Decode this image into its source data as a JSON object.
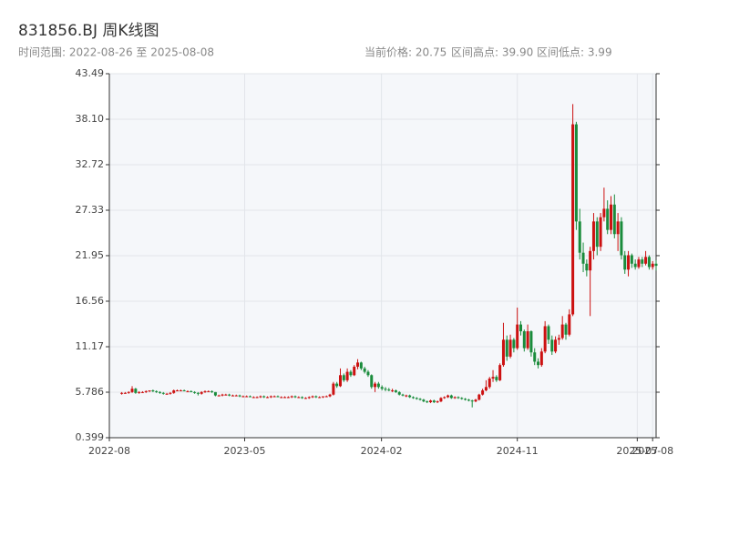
{
  "chart_data": {
    "type": "candlestick",
    "title": "831856.BJ 周K线图",
    "subtitle": "时间范围: 2022-08-26 至 2025-08-08",
    "annotations": [
      "当前价格: 20.75",
      "区间高点: 39.90",
      "区间低点: 3.99"
    ],
    "up_color": "#cc1111",
    "down_color": "#1a8c3c",
    "grid": true,
    "ylim": [
      0.399,
      43.49
    ],
    "yticks": [
      0.399,
      5.786,
      11.17,
      16.56,
      21.95,
      27.33,
      32.72,
      {
        "value": 38.1,
        "label": "38.10"
      },
      43.49
    ],
    "xlim": [
      "2022-08-01",
      "2025-08-08"
    ],
    "xticks": [
      {
        "value": "2022-08-01",
        "label": "2022-08"
      },
      {
        "value": "2023-05-01",
        "label": "2023-05"
      },
      {
        "value": "2024-02-01",
        "label": "2024-02"
      },
      {
        "value": "2024-11-01",
        "label": "2024-11"
      },
      {
        "value": "2025-07-01",
        "label": "2025-07"
      },
      {
        "value": "2025-08-01",
        "label": "2025-08"
      }
    ],
    "x": [
      "2022-08-26",
      "2022-09-02",
      "2022-09-09",
      "2022-09-16",
      "2022-09-23",
      "2022-09-30",
      "2022-10-07",
      "2022-10-14",
      "2022-10-21",
      "2022-10-28",
      "2022-11-04",
      "2022-11-11",
      "2022-11-18",
      "2022-11-25",
      "2022-12-02",
      "2022-12-09",
      "2022-12-16",
      "2022-12-23",
      "2022-12-30",
      "2023-01-06",
      "2023-01-13",
      "2023-01-20",
      "2023-01-27",
      "2023-02-03",
      "2023-02-10",
      "2023-02-17",
      "2023-02-24",
      "2023-03-03",
      "2023-03-10",
      "2023-03-17",
      "2023-03-24",
      "2023-03-31",
      "2023-04-07",
      "2023-04-14",
      "2023-04-21",
      "2023-04-28",
      "2023-05-05",
      "2023-05-12",
      "2023-05-19",
      "2023-05-26",
      "2023-06-02",
      "2023-06-09",
      "2023-06-16",
      "2023-06-23",
      "2023-06-30",
      "2023-07-07",
      "2023-07-14",
      "2023-07-21",
      "2023-07-28",
      "2023-08-04",
      "2023-08-11",
      "2023-08-18",
      "2023-08-25",
      "2023-09-01",
      "2023-09-08",
      "2023-09-15",
      "2023-09-22",
      "2023-09-29",
      "2023-10-06",
      "2023-10-13",
      "2023-10-20",
      "2023-10-27",
      "2023-11-03",
      "2023-11-10",
      "2023-11-17",
      "2023-11-24",
      "2023-12-01",
      "2023-12-08",
      "2023-12-15",
      "2023-12-22",
      "2023-12-29",
      "2024-01-05",
      "2024-01-12",
      "2024-01-19",
      "2024-01-26",
      "2024-02-02",
      "2024-02-09",
      "2024-02-16",
      "2024-02-23",
      "2024-03-01",
      "2024-03-08",
      "2024-03-15",
      "2024-03-22",
      "2024-03-29",
      "2024-04-05",
      "2024-04-12",
      "2024-04-19",
      "2024-04-26",
      "2024-05-03",
      "2024-05-10",
      "2024-05-17",
      "2024-05-24",
      "2024-05-31",
      "2024-06-07",
      "2024-06-14",
      "2024-06-21",
      "2024-06-28",
      "2024-07-05",
      "2024-07-12",
      "2024-07-19",
      "2024-07-26",
      "2024-08-02",
      "2024-08-09",
      "2024-08-16",
      "2024-08-23",
      "2024-08-30",
      "2024-09-06",
      "2024-09-13",
      "2024-09-20",
      "2024-09-27",
      "2024-10-04",
      "2024-10-11",
      "2024-10-18",
      "2024-10-25",
      "2024-11-01",
      "2024-11-08",
      "2024-11-15",
      "2024-11-22",
      "2024-11-29",
      "2024-12-06",
      "2024-12-13",
      "2024-12-20",
      "2024-12-27",
      "2025-01-03",
      "2025-01-10",
      "2025-01-17",
      "2025-01-24",
      "2025-01-31",
      "2025-02-07",
      "2025-02-14",
      "2025-02-21",
      "2025-02-28",
      "2025-03-07",
      "2025-03-14",
      "2025-03-21",
      "2025-03-28",
      "2025-04-04",
      "2025-04-11",
      "2025-04-18",
      "2025-04-25",
      "2025-05-02",
      "2025-05-09",
      "2025-05-16",
      "2025-05-23",
      "2025-05-30",
      "2025-06-06",
      "2025-06-13",
      "2025-06-20",
      "2025-06-27",
      "2025-07-04",
      "2025-07-11",
      "2025-07-18",
      "2025-07-25",
      "2025-08-01",
      "2025-08-08"
    ],
    "open": [
      5.6,
      5.7,
      5.7,
      5.8,
      6.2,
      5.7,
      5.8,
      5.8,
      5.9,
      6.0,
      5.9,
      5.8,
      5.7,
      5.6,
      5.6,
      5.7,
      6.0,
      6.0,
      6.0,
      5.9,
      5.9,
      5.8,
      5.7,
      5.6,
      5.8,
      5.9,
      5.9,
      5.8,
      5.4,
      5.4,
      5.5,
      5.5,
      5.4,
      5.4,
      5.4,
      5.3,
      5.3,
      5.3,
      5.2,
      5.2,
      5.2,
      5.3,
      5.2,
      5.2,
      5.3,
      5.3,
      5.2,
      5.2,
      5.2,
      5.2,
      5.3,
      5.2,
      5.2,
      5.1,
      5.1,
      5.2,
      5.3,
      5.2,
      5.2,
      5.3,
      5.3,
      5.5,
      6.8,
      6.5,
      7.8,
      7.2,
      8.2,
      7.8,
      8.8,
      9.3,
      8.6,
      8.2,
      7.8,
      6.4,
      6.8,
      6.4,
      6.2,
      6.1,
      6.0,
      6.0,
      5.8,
      5.5,
      5.4,
      5.4,
      5.2,
      5.1,
      5.0,
      4.9,
      4.7,
      4.6,
      4.8,
      4.6,
      4.7,
      5.1,
      5.2,
      5.4,
      5.1,
      5.2,
      5.1,
      5.0,
      4.9,
      4.8,
      4.7,
      4.9,
      5.5,
      6.0,
      6.4,
      7.4,
      7.6,
      7.2,
      9.0,
      12.0,
      10.0,
      12.0,
      11.0,
      13.8,
      13.0,
      11.0,
      13.0,
      10.5,
      9.4,
      9.0,
      10.6,
      13.6,
      12.0,
      10.6,
      12.0,
      12.2,
      13.8,
      12.6,
      15.0,
      37.5,
      26.0,
      22.3,
      21.0,
      20.2,
      22.5,
      26.0,
      23.0,
      26.5,
      27.5,
      25.0,
      28.0,
      24.5,
      26.0,
      22.0,
      20.3,
      22.0,
      21.0,
      20.6,
      21.5,
      21.0,
      21.8,
      20.6,
      21.0
    ],
    "high": [
      5.8,
      5.8,
      5.9,
      6.5,
      6.3,
      5.9,
      5.9,
      6.0,
      6.0,
      6.1,
      6.0,
      5.9,
      5.8,
      5.7,
      5.8,
      6.1,
      6.1,
      6.1,
      6.1,
      6.0,
      6.0,
      5.9,
      5.8,
      5.9,
      6.0,
      6.0,
      6.0,
      5.8,
      5.5,
      5.6,
      5.6,
      5.6,
      5.5,
      5.5,
      5.5,
      5.4,
      5.4,
      5.4,
      5.3,
      5.3,
      5.4,
      5.4,
      5.3,
      5.4,
      5.4,
      5.4,
      5.3,
      5.3,
      5.3,
      5.4,
      5.4,
      5.3,
      5.3,
      5.2,
      5.3,
      5.4,
      5.4,
      5.3,
      5.3,
      5.4,
      5.6,
      7.0,
      7.0,
      8.6,
      8.0,
      8.6,
      8.4,
      9.0,
      9.7,
      9.4,
      8.8,
      8.4,
      7.9,
      7.0,
      7.0,
      6.6,
      6.4,
      6.3,
      6.2,
      6.1,
      5.9,
      5.6,
      5.5,
      5.5,
      5.3,
      5.2,
      5.1,
      5.0,
      4.8,
      4.9,
      4.9,
      4.8,
      5.2,
      5.3,
      5.5,
      5.5,
      5.3,
      5.3,
      5.2,
      5.1,
      5.0,
      4.9,
      5.0,
      5.6,
      6.2,
      7.2,
      7.6,
      8.4,
      7.8,
      9.2,
      14.0,
      12.5,
      12.6,
      12.2,
      15.8,
      14.2,
      13.2,
      13.8,
      13.1,
      11.0,
      9.8,
      11.0,
      14.2,
      13.8,
      12.5,
      12.4,
      12.6,
      14.8,
      14.0,
      15.6,
      39.9,
      37.8,
      27.5,
      23.5,
      21.5,
      23.0,
      27.0,
      26.5,
      27.0,
      30.0,
      28.5,
      29.0,
      29.2,
      27.0,
      26.5,
      22.5,
      22.5,
      22.2,
      21.5,
      21.8,
      21.8,
      22.5,
      22.0,
      21.3,
      21.4
    ],
    "low": [
      5.5,
      5.6,
      5.6,
      5.7,
      5.6,
      5.6,
      5.7,
      5.7,
      5.8,
      5.8,
      5.7,
      5.6,
      5.5,
      5.5,
      5.5,
      5.6,
      5.9,
      5.9,
      5.9,
      5.8,
      5.8,
      5.6,
      5.4,
      5.5,
      5.7,
      5.8,
      5.7,
      5.3,
      5.3,
      5.3,
      5.4,
      5.3,
      5.3,
      5.3,
      5.2,
      5.2,
      5.2,
      5.2,
      5.1,
      5.1,
      5.1,
      5.1,
      5.1,
      5.1,
      5.2,
      5.2,
      5.1,
      5.1,
      5.1,
      5.1,
      5.1,
      5.1,
      5.0,
      5.0,
      5.0,
      5.1,
      5.1,
      5.1,
      5.1,
      5.2,
      5.2,
      5.4,
      6.3,
      6.4,
      7.0,
      7.0,
      7.6,
      7.7,
      8.5,
      8.4,
      8.0,
      7.6,
      6.2,
      5.8,
      6.2,
      6.0,
      5.9,
      5.9,
      5.8,
      5.7,
      5.4,
      5.3,
      5.2,
      5.1,
      5.0,
      4.9,
      4.8,
      4.6,
      4.5,
      4.5,
      4.5,
      4.5,
      4.6,
      5.0,
      5.1,
      5.0,
      5.0,
      5.0,
      4.9,
      4.8,
      4.7,
      3.99,
      4.6,
      4.8,
      5.4,
      5.9,
      6.2,
      7.0,
      7.0,
      7.1,
      8.8,
      9.5,
      9.8,
      10.5,
      10.8,
      12.5,
      10.6,
      10.8,
      10.0,
      9.0,
      8.6,
      8.8,
      10.4,
      11.5,
      10.2,
      10.4,
      11.4,
      12.0,
      12.0,
      12.4,
      14.8,
      25.0,
      21.5,
      20.0,
      19.5,
      14.8,
      21.5,
      22.0,
      22.5,
      26.0,
      24.5,
      24.5,
      24.0,
      22.5,
      21.5,
      19.8,
      19.5,
      20.5,
      20.3,
      20.4,
      20.6,
      20.8,
      20.3,
      20.3,
      20.2
    ],
    "close": [
      5.7,
      5.7,
      5.8,
      6.2,
      5.7,
      5.8,
      5.8,
      5.9,
      6.0,
      5.9,
      5.8,
      5.7,
      5.6,
      5.6,
      5.7,
      6.0,
      6.0,
      6.0,
      5.9,
      5.9,
      5.8,
      5.7,
      5.6,
      5.8,
      5.9,
      5.9,
      5.8,
      5.4,
      5.4,
      5.5,
      5.5,
      5.4,
      5.4,
      5.4,
      5.3,
      5.3,
      5.3,
      5.2,
      5.2,
      5.2,
      5.3,
      5.2,
      5.2,
      5.3,
      5.3,
      5.2,
      5.2,
      5.2,
      5.2,
      5.3,
      5.2,
      5.2,
      5.1,
      5.1,
      5.2,
      5.3,
      5.2,
      5.2,
      5.3,
      5.3,
      5.5,
      6.8,
      6.5,
      7.8,
      7.2,
      8.2,
      7.8,
      8.8,
      9.3,
      8.6,
      8.2,
      7.8,
      6.4,
      6.8,
      6.4,
      6.2,
      6.1,
      6.0,
      6.0,
      5.8,
      5.5,
      5.4,
      5.4,
      5.2,
      5.1,
      5.0,
      4.9,
      4.7,
      4.6,
      4.8,
      4.6,
      4.7,
      5.1,
      5.2,
      5.4,
      5.1,
      5.2,
      5.1,
      5.0,
      4.9,
      4.8,
      4.7,
      4.9,
      5.5,
      6.0,
      6.4,
      7.4,
      7.6,
      7.2,
      9.0,
      12.0,
      10.0,
      12.0,
      11.0,
      13.8,
      13.0,
      11.0,
      13.0,
      10.5,
      9.4,
      9.0,
      10.6,
      13.6,
      12.0,
      10.6,
      12.0,
      12.2,
      13.8,
      12.6,
      15.0,
      37.5,
      26.0,
      22.3,
      21.0,
      20.2,
      22.5,
      26.0,
      23.0,
      26.5,
      27.5,
      25.0,
      28.0,
      24.5,
      26.0,
      22.0,
      20.3,
      22.0,
      21.0,
      20.6,
      21.5,
      21.0,
      21.8,
      20.6,
      21.0,
      20.75
    ]
  }
}
